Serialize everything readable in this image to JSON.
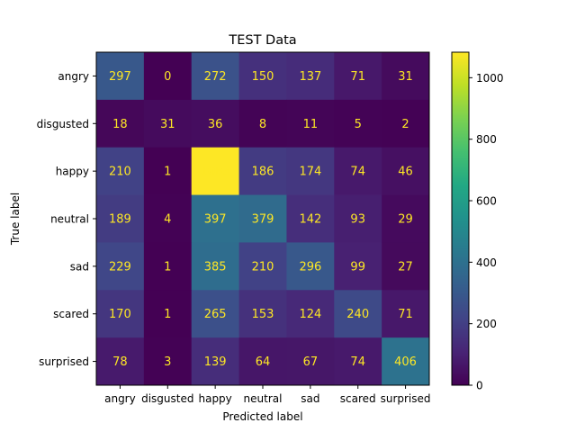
{
  "chart_data": {
    "type": "heatmap",
    "title": "TEST Data",
    "xlabel": "Predicted label",
    "ylabel": "True label",
    "x_categories": [
      "angry",
      "disgusted",
      "happy",
      "neutral",
      "sad",
      "scared",
      "surprised"
    ],
    "y_categories": [
      "angry",
      "disgusted",
      "happy",
      "neutral",
      "sad",
      "scared",
      "surprised"
    ],
    "values": [
      [
        297,
        0,
        272,
        150,
        137,
        71,
        31
      ],
      [
        18,
        31,
        36,
        8,
        11,
        5,
        2
      ],
      [
        210,
        1,
        1083,
        186,
        174,
        74,
        46
      ],
      [
        189,
        4,
        397,
        379,
        142,
        93,
        29
      ],
      [
        229,
        1,
        385,
        210,
        296,
        99,
        27
      ],
      [
        170,
        1,
        265,
        153,
        124,
        240,
        71
      ],
      [
        78,
        3,
        139,
        64,
        67,
        74,
        406
      ]
    ],
    "colormap": "viridis",
    "value_label_color": "#fde725",
    "colorbar": {
      "min": 0,
      "max": 1083,
      "ticks": [
        0,
        200,
        400,
        600,
        800,
        1000
      ]
    }
  }
}
